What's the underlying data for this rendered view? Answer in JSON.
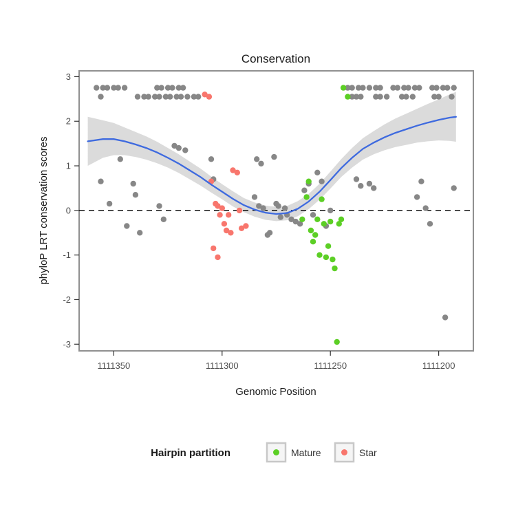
{
  "chart_data": {
    "type": "scatter",
    "title": "Conservation",
    "xlabel": "Genomic Position",
    "ylabel": "phyloP LRT conservation scores",
    "x_ticks": [
      1111350,
      1111300,
      1111250,
      1111200
    ],
    "x_reversed": true,
    "xlim": [
      1111366,
      1111184
    ],
    "y_ticks": [
      3,
      2,
      1,
      0,
      -1,
      -2,
      -3
    ],
    "ylim": [
      -3.15,
      3.13
    ],
    "zero_line": 0,
    "grid": false,
    "colors": {
      "other": "#878787",
      "mature": "#5ccf25",
      "star": "#f8766d",
      "smooth": "#3e6adf",
      "ribbon": "#7f7f7f",
      "ribbon_opacity": 0.28,
      "zero_line": "#000000"
    },
    "legend": {
      "title": "Hairpin partition",
      "position": "bottom",
      "entries": [
        {
          "label": "Mature",
          "color": "#5ccf25"
        },
        {
          "label": "Star",
          "color": "#f8766d"
        }
      ]
    },
    "series": [
      {
        "name": "Other",
        "color_key": "other",
        "points": [
          [
            1111358,
            2.75
          ],
          [
            1111355,
            2.75
          ],
          [
            1111353,
            2.75
          ],
          [
            1111350,
            2.75
          ],
          [
            1111348,
            2.75
          ],
          [
            1111345,
            2.75
          ],
          [
            1111330,
            2.75
          ],
          [
            1111328,
            2.75
          ],
          [
            1111325,
            2.75
          ],
          [
            1111323,
            2.75
          ],
          [
            1111320,
            2.75
          ],
          [
            1111318,
            2.75
          ],
          [
            1111356,
            2.55
          ],
          [
            1111339,
            2.55
          ],
          [
            1111336,
            2.55
          ],
          [
            1111334,
            2.55
          ],
          [
            1111331,
            2.55
          ],
          [
            1111329,
            2.55
          ],
          [
            1111326,
            2.55
          ],
          [
            1111324,
            2.55
          ],
          [
            1111321,
            2.55
          ],
          [
            1111319,
            2.55
          ],
          [
            1111316,
            2.55
          ],
          [
            1111313,
            2.55
          ],
          [
            1111311,
            2.55
          ],
          [
            1111242,
            2.75
          ],
          [
            1111240,
            2.75
          ],
          [
            1111237,
            2.75
          ],
          [
            1111235,
            2.75
          ],
          [
            1111232,
            2.75
          ],
          [
            1111229,
            2.75
          ],
          [
            1111227,
            2.75
          ],
          [
            1111221,
            2.75
          ],
          [
            1111219,
            2.75
          ],
          [
            1111216,
            2.75
          ],
          [
            1111214,
            2.75
          ],
          [
            1111211,
            2.75
          ],
          [
            1111209,
            2.75
          ],
          [
            1111203,
            2.75
          ],
          [
            1111201,
            2.75
          ],
          [
            1111198,
            2.75
          ],
          [
            1111196,
            2.75
          ],
          [
            1111193,
            2.75
          ],
          [
            1111240,
            2.55
          ],
          [
            1111238,
            2.55
          ],
          [
            1111236,
            2.55
          ],
          [
            1111229,
            2.55
          ],
          [
            1111227,
            2.55
          ],
          [
            1111224,
            2.55
          ],
          [
            1111217,
            2.55
          ],
          [
            1111215,
            2.55
          ],
          [
            1111212,
            2.55
          ],
          [
            1111202,
            2.55
          ],
          [
            1111200,
            2.55
          ],
          [
            1111194,
            2.55
          ],
          [
            1111356,
            0.65
          ],
          [
            1111352,
            0.15
          ],
          [
            1111347,
            1.15
          ],
          [
            1111344,
            -0.35
          ],
          [
            1111341,
            0.6
          ],
          [
            1111340,
            0.35
          ],
          [
            1111338,
            -0.5
          ],
          [
            1111329,
            0.1
          ],
          [
            1111327,
            -0.2
          ],
          [
            1111322,
            1.45
          ],
          [
            1111320,
            1.4
          ],
          [
            1111317,
            1.35
          ],
          [
            1111305,
            1.15
          ],
          [
            1111304,
            0.7
          ],
          [
            1111284,
            1.15
          ],
          [
            1111282,
            1.05
          ],
          [
            1111285,
            0.3
          ],
          [
            1111283,
            0.1
          ],
          [
            1111281,
            0.05
          ],
          [
            1111279,
            -0.55
          ],
          [
            1111278,
            -0.5
          ],
          [
            1111276,
            1.2
          ],
          [
            1111275,
            0.15
          ],
          [
            1111274,
            0.1
          ],
          [
            1111273,
            -0.15
          ],
          [
            1111271,
            0.05
          ],
          [
            1111270,
            -0.1
          ],
          [
            1111268,
            -0.2
          ],
          [
            1111266,
            -0.25
          ],
          [
            1111264,
            -0.3
          ],
          [
            1111262,
            0.45
          ],
          [
            1111260,
            0.6
          ],
          [
            1111258,
            -0.1
          ],
          [
            1111256,
            0.85
          ],
          [
            1111254,
            0.65
          ],
          [
            1111252,
            -0.35
          ],
          [
            1111250,
            0.0
          ],
          [
            1111238,
            0.7
          ],
          [
            1111236,
            0.55
          ],
          [
            1111232,
            0.6
          ],
          [
            1111230,
            0.5
          ],
          [
            1111210,
            0.3
          ],
          [
            1111208,
            0.65
          ],
          [
            1111206,
            0.05
          ],
          [
            1111204,
            -0.3
          ],
          [
            1111197,
            -2.4
          ],
          [
            1111193,
            0.5
          ]
        ]
      },
      {
        "name": "Mature",
        "color_key": "mature",
        "points": [
          [
            1111244,
            2.75
          ],
          [
            1111242,
            2.55
          ],
          [
            1111263,
            -0.2
          ],
          [
            1111261,
            0.3
          ],
          [
            1111260,
            0.65
          ],
          [
            1111259,
            -0.45
          ],
          [
            1111258,
            -0.7
          ],
          [
            1111257,
            -0.55
          ],
          [
            1111256,
            -0.2
          ],
          [
            1111255,
            -1.0
          ],
          [
            1111254,
            0.25
          ],
          [
            1111253,
            -0.3
          ],
          [
            1111252,
            -1.05
          ],
          [
            1111251,
            -0.8
          ],
          [
            1111250,
            -0.25
          ],
          [
            1111249,
            -1.1
          ],
          [
            1111248,
            -1.3
          ],
          [
            1111247,
            -2.95
          ],
          [
            1111246,
            -0.3
          ],
          [
            1111245,
            -0.2
          ]
        ]
      },
      {
        "name": "Star",
        "color_key": "star",
        "points": [
          [
            1111308,
            2.6
          ],
          [
            1111306,
            2.55
          ],
          [
            1111305,
            0.65
          ],
          [
            1111303,
            0.15
          ],
          [
            1111302,
            0.1
          ],
          [
            1111301,
            -0.1
          ],
          [
            1111300,
            0.05
          ],
          [
            1111299,
            -0.3
          ],
          [
            1111298,
            -0.45
          ],
          [
            1111297,
            -0.1
          ],
          [
            1111296,
            -0.5
          ],
          [
            1111295,
            0.9
          ],
          [
            1111293,
            0.85
          ],
          [
            1111292,
            0.0
          ],
          [
            1111291,
            -0.4
          ],
          [
            1111304,
            -0.85
          ],
          [
            1111302,
            -1.05
          ],
          [
            1111289,
            -0.35
          ]
        ]
      }
    ],
    "smooth": {
      "x": [
        1111362,
        1111355,
        1111350,
        1111345,
        1111340,
        1111335,
        1111330,
        1111325,
        1111320,
        1111315,
        1111310,
        1111305,
        1111300,
        1111295,
        1111290,
        1111285,
        1111280,
        1111275,
        1111270,
        1111265,
        1111260,
        1111255,
        1111250,
        1111245,
        1111240,
        1111235,
        1111230,
        1111225,
        1111220,
        1111215,
        1111210,
        1111205,
        1111200,
        1111195,
        1111192
      ],
      "y": [
        1.55,
        1.6,
        1.6,
        1.55,
        1.48,
        1.4,
        1.3,
        1.18,
        1.05,
        0.9,
        0.75,
        0.58,
        0.42,
        0.26,
        0.12,
        0.02,
        -0.05,
        -0.08,
        -0.06,
        0.04,
        0.2,
        0.42,
        0.68,
        0.95,
        1.18,
        1.38,
        1.52,
        1.64,
        1.74,
        1.82,
        1.9,
        1.97,
        2.03,
        2.08,
        2.1
      ],
      "half_width": [
        0.55,
        0.42,
        0.36,
        0.31,
        0.28,
        0.26,
        0.24,
        0.22,
        0.21,
        0.2,
        0.19,
        0.18,
        0.17,
        0.17,
        0.16,
        0.16,
        0.16,
        0.16,
        0.16,
        0.17,
        0.17,
        0.18,
        0.19,
        0.2,
        0.22,
        0.24,
        0.26,
        0.29,
        0.32,
        0.35,
        0.38,
        0.42,
        0.46,
        0.52,
        0.56
      ]
    }
  }
}
